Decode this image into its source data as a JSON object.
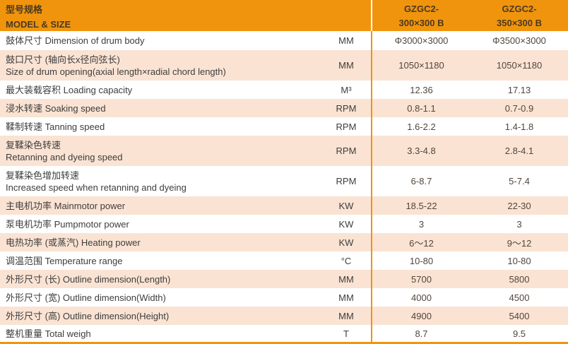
{
  "colors": {
    "header_bg": "#F0940E",
    "row_alt_bg": "#FAE3D3",
    "row_bg": "#FFFFFF",
    "divider": "#F0940E",
    "header_text": "#4A3A1E",
    "label_text": "#3D3D3D",
    "value_text": "#51463B"
  },
  "table": {
    "header": {
      "title_cn": "型号规格",
      "title_en": "MODEL & SIZE",
      "columns": [
        {
          "model": "GZGC2-",
          "size": "300×300 B"
        },
        {
          "model": "GZGC2-",
          "size": "350×300 B"
        }
      ]
    },
    "rows": [
      {
        "label_lines": [
          "鼓体尺寸 Dimension of drum body"
        ],
        "unit": "MM",
        "values": [
          "Φ3000×3000",
          "Φ3500×3000"
        ]
      },
      {
        "label_lines": [
          "鼓口尺寸 (轴向长x径向弦长)",
          "Size of drum opening(axial length×radial chord length)"
        ],
        "unit": "MM",
        "values": [
          "1050×1180",
          "1050×1180"
        ]
      },
      {
        "label_lines": [
          "最大装载容积 Loading capacity"
        ],
        "unit": "M³",
        "values": [
          "12.36",
          "17.13"
        ]
      },
      {
        "label_lines": [
          "浸水转速 Soaking speed"
        ],
        "unit": "RPM",
        "values": [
          "0.8-1.1",
          "0.7-0.9"
        ]
      },
      {
        "label_lines": [
          "鞣制转速 Tanning speed"
        ],
        "unit": "RPM",
        "values": [
          "1.6-2.2",
          "1.4-1.8"
        ]
      },
      {
        "label_lines": [
          "复鞣染色转速",
          "Retanning and dyeing speed"
        ],
        "unit": "RPM",
        "values": [
          "3.3-4.8",
          "2.8-4.1"
        ]
      },
      {
        "label_lines": [
          "复鞣染色增加转速",
          "Increased speed when retanning and dyeing"
        ],
        "unit": "RPM",
        "values": [
          "6-8.7",
          "5-7.4"
        ]
      },
      {
        "label_lines": [
          "主电机功率 Mainmotor power"
        ],
        "unit": "KW",
        "values": [
          "18.5-22",
          "22-30"
        ]
      },
      {
        "label_lines": [
          "泵电机功率 Pumpmotor power"
        ],
        "unit": "KW",
        "values": [
          "3",
          "3"
        ]
      },
      {
        "label_lines": [
          "电热功率 (或蒸汽) Heating power"
        ],
        "unit": "KW",
        "values": [
          "6～12",
          "9～12"
        ]
      },
      {
        "label_lines": [
          "调温范围 Temperature range"
        ],
        "unit": "°C",
        "values": [
          "10-80",
          "10-80"
        ]
      },
      {
        "label_lines": [
          "外形尺寸 (长) Outline dimension(Length)"
        ],
        "unit": "MM",
        "values": [
          "5700",
          "5800"
        ]
      },
      {
        "label_lines": [
          "外形尺寸 (宽) Outline dimension(Width)"
        ],
        "unit": "MM",
        "values": [
          "4000",
          "4500"
        ]
      },
      {
        "label_lines": [
          "外形尺寸 (高) Outline dimension(Height)"
        ],
        "unit": "MM",
        "values": [
          "4900",
          "5400"
        ]
      },
      {
        "label_lines": [
          "整机重量 Total weigh"
        ],
        "unit": "T",
        "values": [
          "8.7",
          "9.5"
        ]
      }
    ]
  }
}
